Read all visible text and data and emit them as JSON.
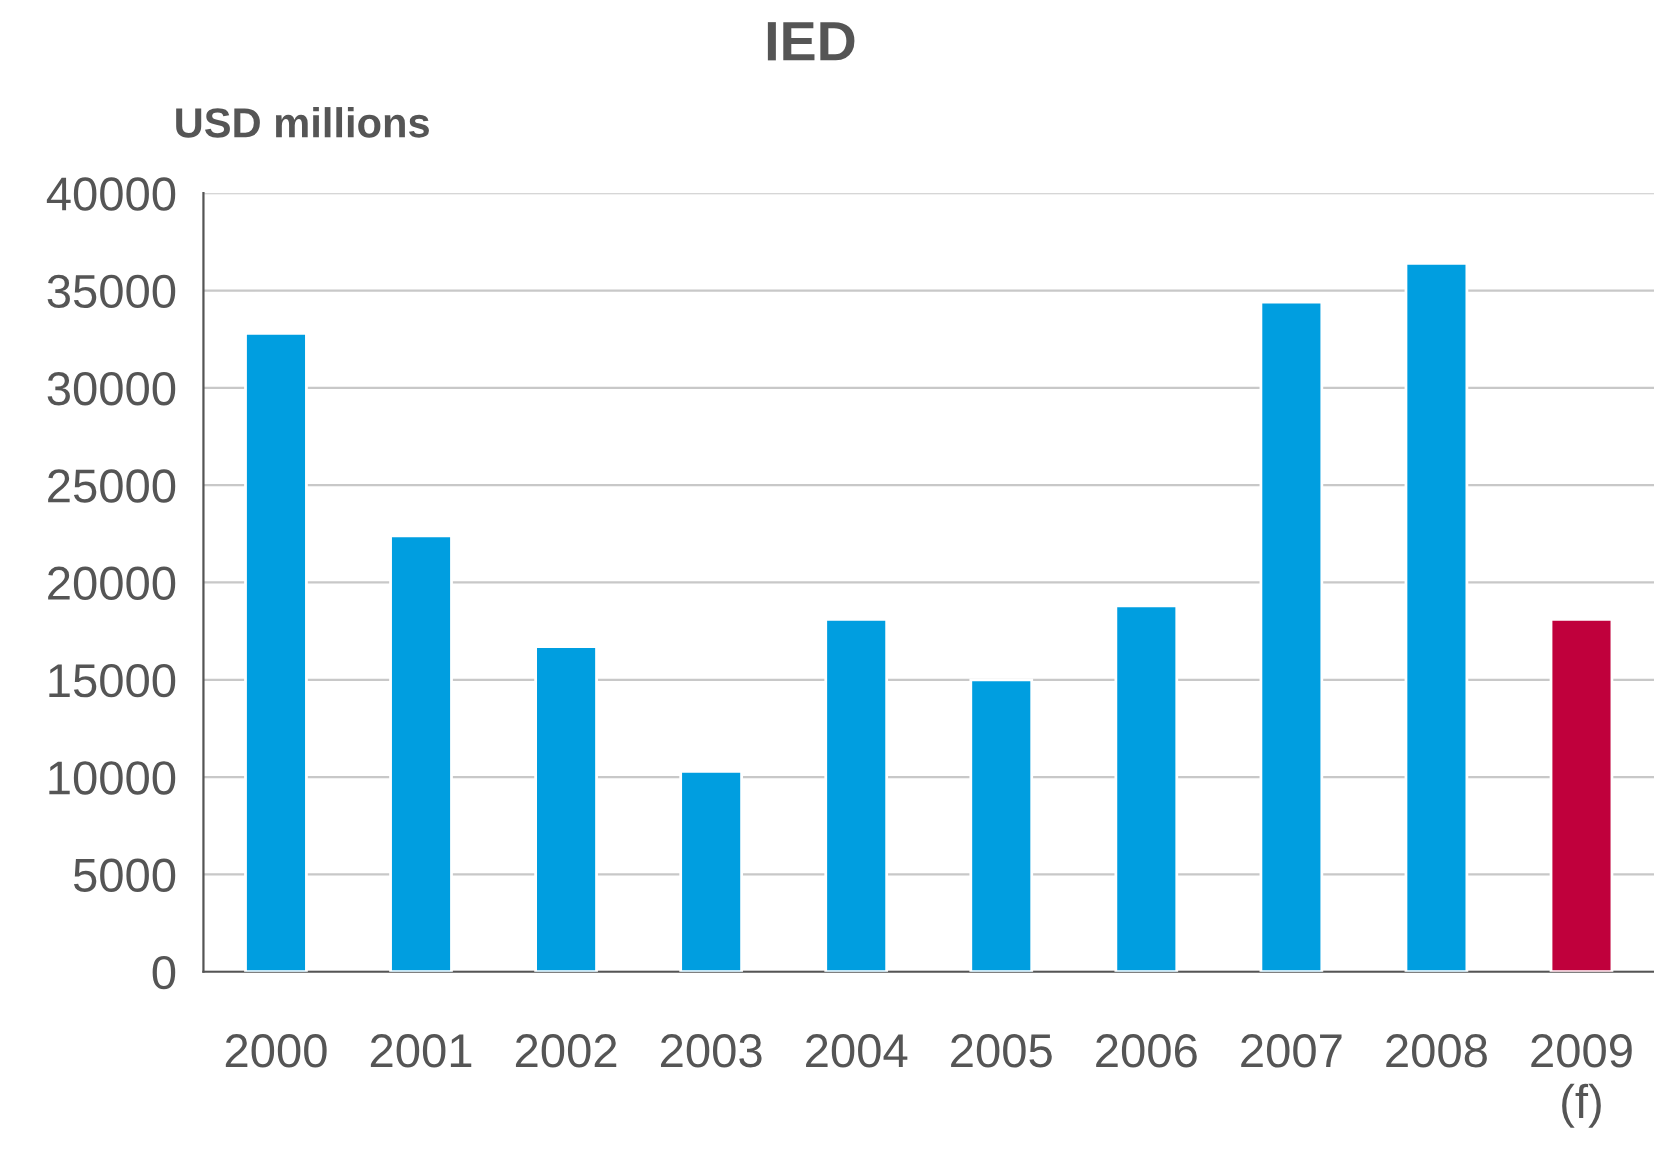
{
  "chart_data": {
    "type": "bar",
    "title": "IED",
    "ylabel": "USD millions",
    "categories": [
      "2000",
      "2001",
      "2002",
      "2003",
      "2004",
      "2005",
      "2006",
      "2007",
      "2008",
      "2009\n(f)"
    ],
    "values": [
      32800,
      22400,
      16700,
      10300,
      18100,
      15000,
      18800,
      34400,
      36400,
      18100
    ],
    "colors": [
      "#009ee0",
      "#009ee0",
      "#009ee0",
      "#009ee0",
      "#009ee0",
      "#009ee0",
      "#009ee0",
      "#009ee0",
      "#009ee0",
      "#c0003c"
    ],
    "ylim": [
      0,
      40000
    ],
    "yticks": [
      0,
      5000,
      10000,
      15000,
      20000,
      25000,
      30000,
      35000,
      40000
    ],
    "grid": "y",
    "legend": false
  }
}
